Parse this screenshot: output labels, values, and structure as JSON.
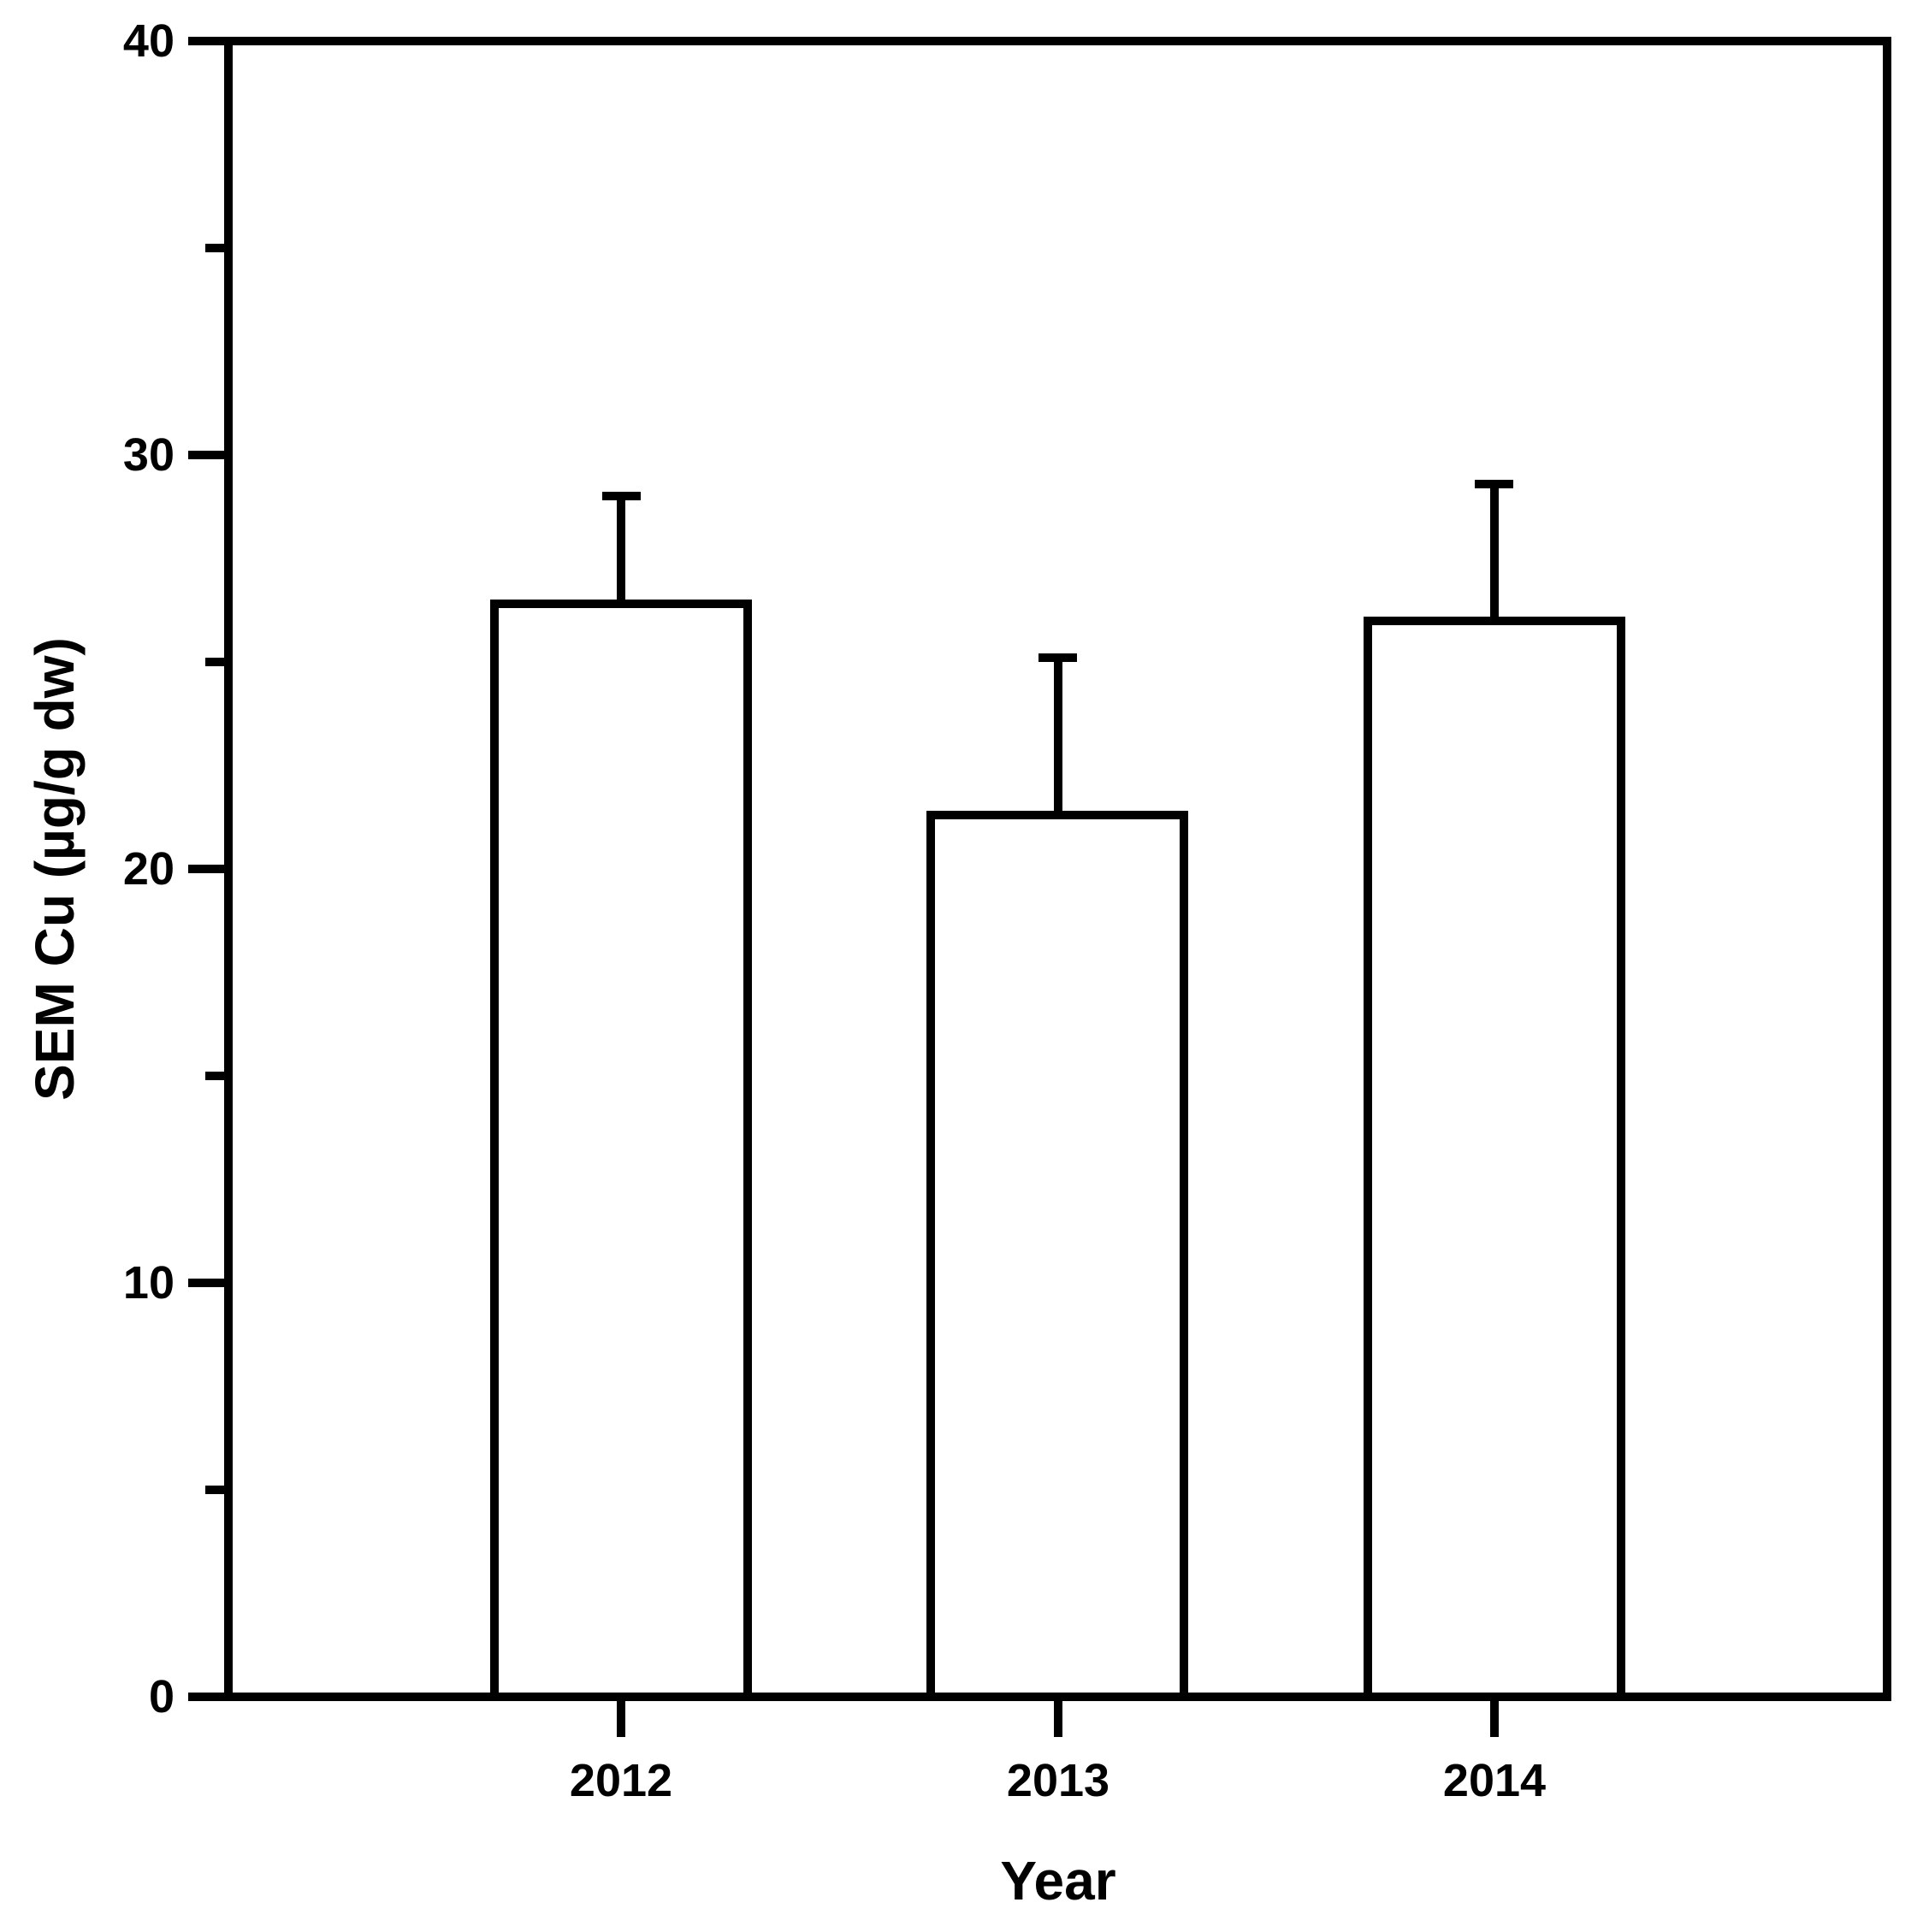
{
  "chart_data": {
    "type": "bar",
    "title": "",
    "categories": [
      "2012",
      "2013",
      "2014"
    ],
    "values": [
      26.4,
      21.3,
      26.0
    ],
    "errors_up": [
      2.6,
      3.8,
      3.3
    ],
    "error_bar_style": "upper-only-with-cap",
    "xlabel": "Year",
    "ylabel": "SEM Cu (µg/g dw)",
    "ylim": [
      0,
      40
    ],
    "ytick_major_values": [
      0,
      10,
      20,
      30,
      40
    ],
    "ytick_major_labels": [
      "0",
      "10",
      "20",
      "30",
      "40"
    ],
    "ytick_minor_values": [
      5,
      15,
      25,
      35
    ],
    "grid": false,
    "legend": "none",
    "frame": "full-box",
    "bar_fill": "#ffffff",
    "line_color": "#000000",
    "background_color": "#ffffff"
  }
}
